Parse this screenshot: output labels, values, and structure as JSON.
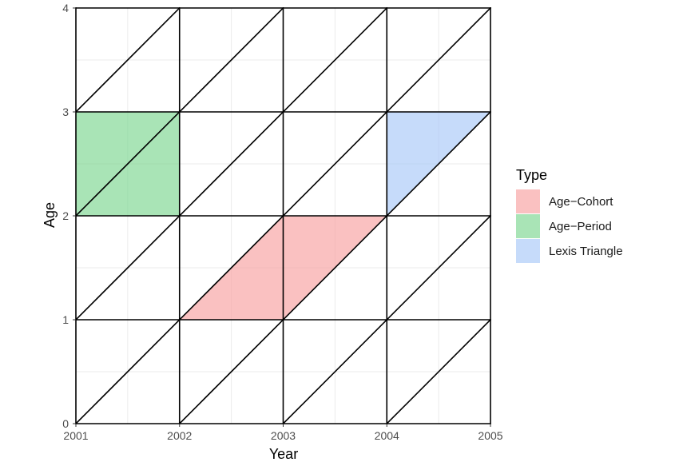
{
  "chart_data": {
    "type": "lexis-diagram",
    "xlabel": "Year",
    "ylabel": "Age",
    "xlim": [
      2001,
      2005
    ],
    "ylim": [
      0,
      4
    ],
    "x_ticks": [
      "2001",
      "2002",
      "2003",
      "2004",
      "2005"
    ],
    "y_ticks": [
      "0",
      "1",
      "2",
      "3",
      "4"
    ],
    "grid": true,
    "lexis_lines": {
      "horizontal_ages": [
        0,
        1,
        2,
        3,
        4
      ],
      "vertical_years": [
        2001,
        2002,
        2003,
        2004,
        2005
      ],
      "diagonal_slope": 1
    },
    "legend": {
      "title": "Type",
      "placement": "right",
      "entries": [
        {
          "name": "Age−Cohort",
          "color": "#f8a0a0"
        },
        {
          "name": "Age−Period",
          "color": "#7bd68f"
        },
        {
          "name": "Lexis Triangle",
          "color": "#a8c8f8"
        }
      ]
    },
    "regions": [
      {
        "type": "Age−Period",
        "points": [
          [
            2001,
            2
          ],
          [
            2002,
            2
          ],
          [
            2002,
            3
          ],
          [
            2001,
            3
          ]
        ]
      },
      {
        "type": "Age−Cohort",
        "points": [
          [
            2002,
            1
          ],
          [
            2003,
            1
          ],
          [
            2004,
            2
          ],
          [
            2003,
            2
          ]
        ]
      },
      {
        "type": "Lexis Triangle",
        "points": [
          [
            2004,
            2
          ],
          [
            2005,
            3
          ],
          [
            2004,
            3
          ]
        ]
      }
    ]
  }
}
